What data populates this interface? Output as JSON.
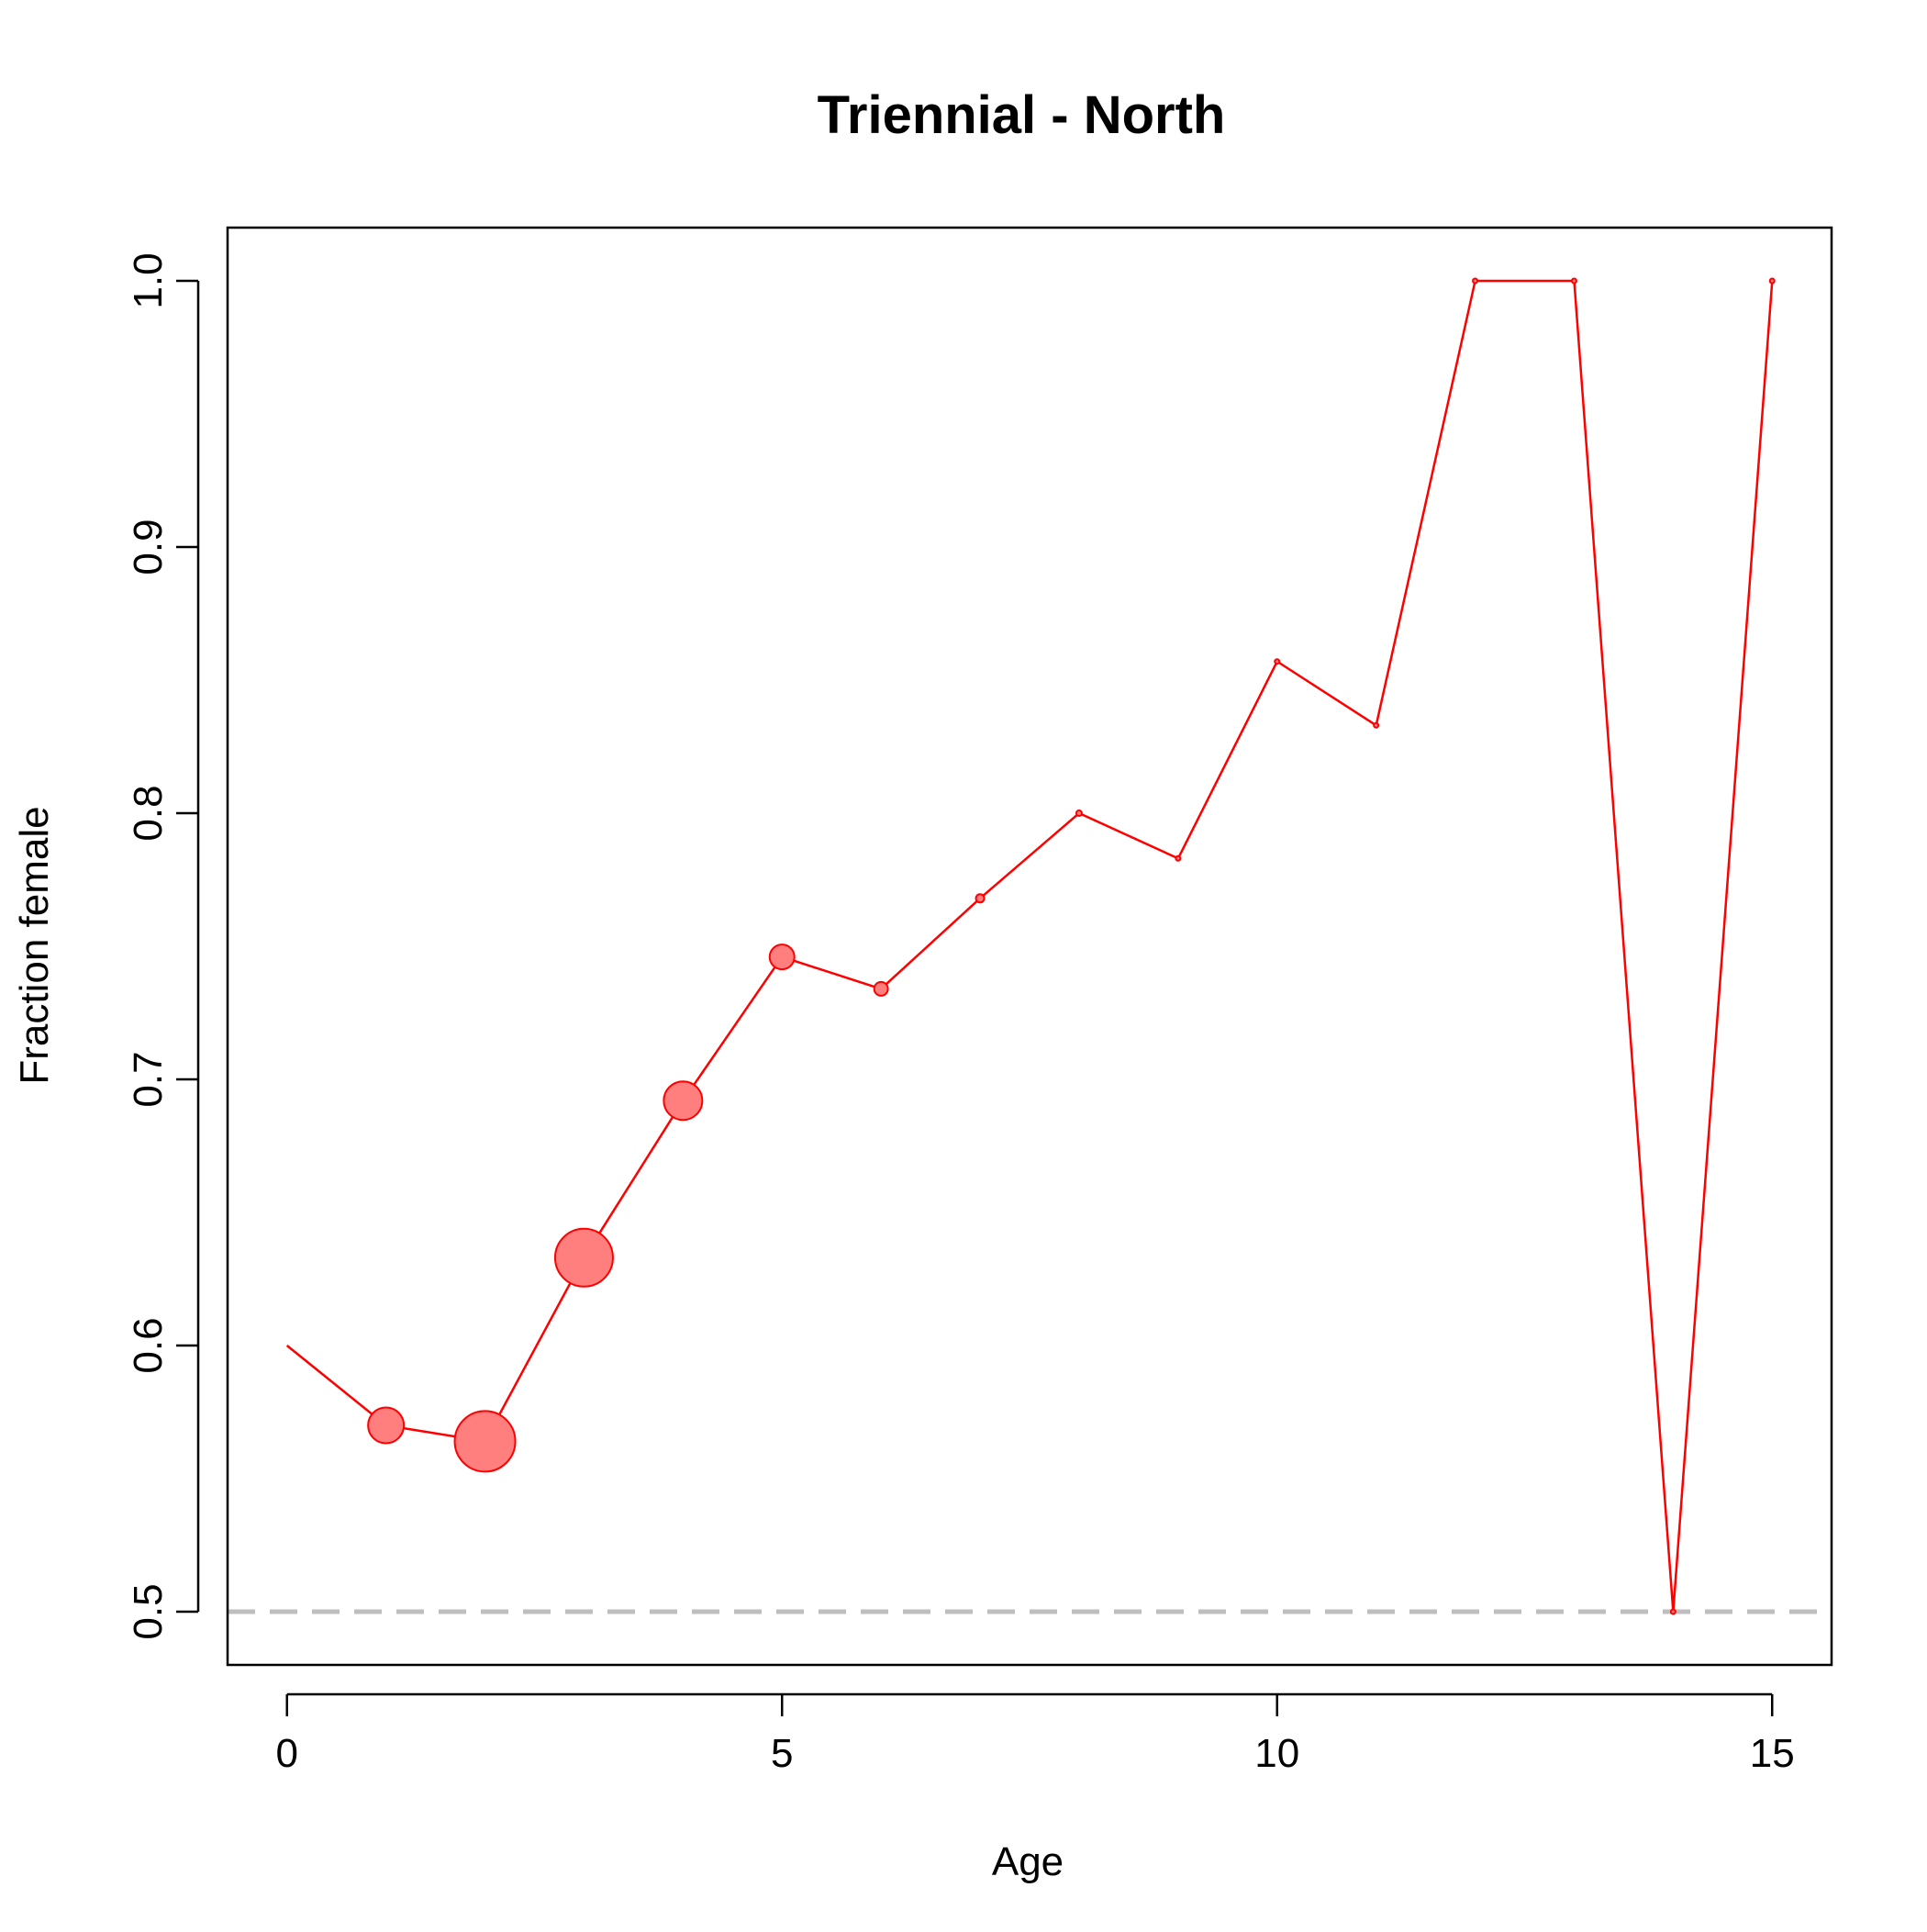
{
  "chart_data": {
    "type": "line",
    "title": "Triennial - North",
    "xlabel": "Age",
    "ylabel": "Fraction female",
    "xlim": [
      -0.6,
      15.6
    ],
    "ylim": [
      0.48,
      1.02
    ],
    "x_ticks": [
      0,
      5,
      10,
      15
    ],
    "x_tick_labels": [
      "0",
      "5",
      "10",
      "15"
    ],
    "y_ticks": [
      0.5,
      0.6,
      0.7,
      0.8,
      0.9,
      1.0
    ],
    "y_tick_labels": [
      "0.5",
      "0.6",
      "0.7",
      "0.8",
      "0.9",
      "1.0"
    ],
    "grid": false,
    "reference_line": {
      "y": 0.5,
      "style": "dashed",
      "color": "#bebebe"
    },
    "series": [
      {
        "color": "#ff0000",
        "point_fill": "#ff7f7f",
        "x": [
          0,
          1,
          2,
          3,
          4,
          5,
          6,
          7,
          8,
          9,
          10,
          11,
          12,
          13,
          14,
          15
        ],
        "y": [
          0.6,
          0.57,
          0.564,
          0.633,
          0.692,
          0.746,
          0.734,
          0.768,
          0.8,
          0.783,
          0.857,
          0.833,
          1.0,
          1.0,
          0.5,
          1.0
        ],
        "point_size": [
          0,
          1.3,
          2.2,
          2.1,
          1.4,
          0.9,
          0.5,
          0.3,
          0.2,
          0.15,
          0.1,
          0.1,
          0.1,
          0.1,
          0.1,
          0.1
        ]
      }
    ]
  }
}
